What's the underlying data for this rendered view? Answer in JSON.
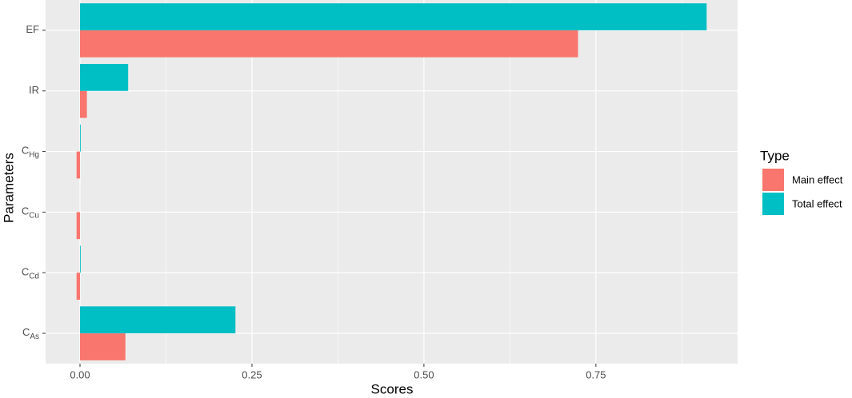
{
  "chart_data": {
    "type": "bar",
    "orientation": "horizontal",
    "x_label": "Scores",
    "y_label": "Parameters",
    "categories": [
      {
        "base": "EF"
      },
      {
        "base": "IR"
      },
      {
        "base": "C",
        "sub": "Hg"
      },
      {
        "base": "C",
        "sub": "Cu"
      },
      {
        "base": "C",
        "sub": "Cd"
      },
      {
        "base": "C",
        "sub": "As"
      }
    ],
    "series": [
      {
        "name": "Main effect",
        "color": "#F8766D",
        "values": [
          0.724,
          0.01,
          -0.005,
          -0.005,
          -0.005,
          0.066
        ]
      },
      {
        "name": "Total effect",
        "color": "#00BFC4",
        "values": [
          0.911,
          0.07,
          0.001,
          0.0,
          0.001,
          0.226
        ]
      }
    ],
    "xlim": [
      -0.05,
      0.956
    ],
    "xticks": [
      {
        "value": 0,
        "label": "0.00"
      },
      {
        "value": 0.25,
        "label": "0.25"
      },
      {
        "value": 0.5,
        "label": "0.50"
      },
      {
        "value": 0.75,
        "label": "0.75"
      }
    ],
    "grid": true,
    "minor_grid": true,
    "legend_title": "Type",
    "legend_position": "right"
  }
}
